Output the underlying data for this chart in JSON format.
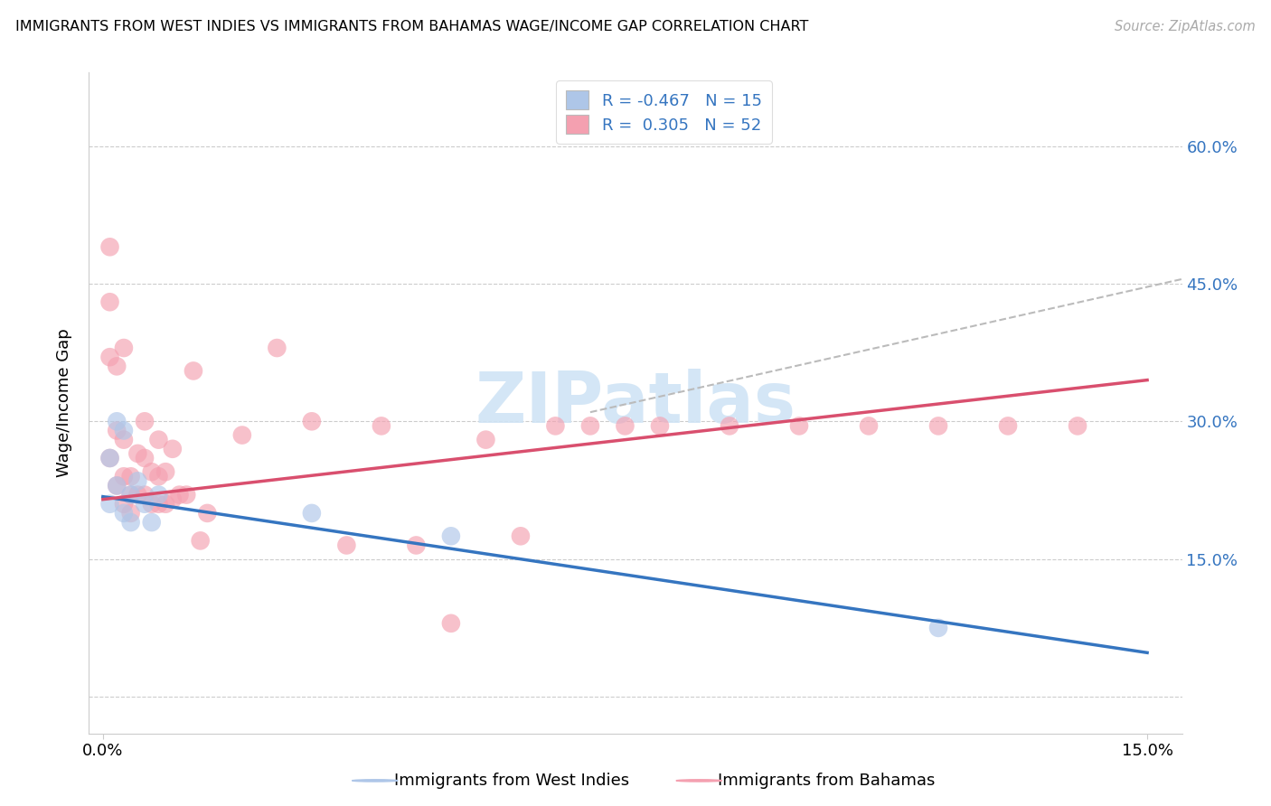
{
  "title": "IMMIGRANTS FROM WEST INDIES VS IMMIGRANTS FROM BAHAMAS WAGE/INCOME GAP CORRELATION CHART",
  "source": "Source: ZipAtlas.com",
  "ylabel": "Wage/Income Gap",
  "y_ticks": [
    0.0,
    0.15,
    0.3,
    0.45,
    0.6
  ],
  "y_tick_labels": [
    "",
    "15.0%",
    "30.0%",
    "45.0%",
    "60.0%"
  ],
  "xlim": [
    -0.002,
    0.155
  ],
  "ylim": [
    -0.04,
    0.68
  ],
  "color_west_indies": "#aec6e8",
  "color_bahamas": "#f4a0b0",
  "color_line_west_indies": "#3575c0",
  "color_line_bahamas": "#d94f6e",
  "color_axis": "#3575c0",
  "color_grid": "#cccccc",
  "color_legend_text": "#3575c0",
  "watermark": "ZIPatlas",
  "wi_line_x0": 0.0,
  "wi_line_y0": 0.218,
  "wi_line_x1": 0.15,
  "wi_line_y1": 0.048,
  "bah_line_x0": 0.0,
  "bah_line_y0": 0.215,
  "bah_line_x1": 0.15,
  "bah_line_y1": 0.345,
  "gray_line_x0": 0.07,
  "gray_line_y0": 0.31,
  "gray_line_x1": 0.155,
  "gray_line_y1": 0.455,
  "west_indies_x": [
    0.001,
    0.001,
    0.002,
    0.002,
    0.003,
    0.003,
    0.004,
    0.004,
    0.005,
    0.006,
    0.007,
    0.008,
    0.03,
    0.05,
    0.12
  ],
  "west_indies_y": [
    0.26,
    0.21,
    0.3,
    0.23,
    0.29,
    0.2,
    0.22,
    0.19,
    0.235,
    0.21,
    0.19,
    0.22,
    0.2,
    0.175,
    0.075
  ],
  "bahamas_x": [
    0.001,
    0.001,
    0.001,
    0.001,
    0.002,
    0.002,
    0.002,
    0.003,
    0.003,
    0.003,
    0.003,
    0.004,
    0.004,
    0.004,
    0.005,
    0.005,
    0.006,
    0.006,
    0.006,
    0.007,
    0.007,
    0.008,
    0.008,
    0.008,
    0.009,
    0.009,
    0.01,
    0.01,
    0.011,
    0.012,
    0.013,
    0.014,
    0.015,
    0.02,
    0.025,
    0.03,
    0.035,
    0.04,
    0.045,
    0.05,
    0.055,
    0.06,
    0.065,
    0.07,
    0.075,
    0.08,
    0.09,
    0.1,
    0.11,
    0.12,
    0.13,
    0.14
  ],
  "bahamas_y": [
    0.49,
    0.43,
    0.37,
    0.26,
    0.36,
    0.29,
    0.23,
    0.38,
    0.28,
    0.24,
    0.21,
    0.24,
    0.22,
    0.2,
    0.265,
    0.22,
    0.3,
    0.26,
    0.22,
    0.245,
    0.21,
    0.28,
    0.24,
    0.21,
    0.245,
    0.21,
    0.27,
    0.215,
    0.22,
    0.22,
    0.355,
    0.17,
    0.2,
    0.285,
    0.38,
    0.3,
    0.165,
    0.295,
    0.165,
    0.08,
    0.28,
    0.175,
    0.295,
    0.295,
    0.295,
    0.295,
    0.295,
    0.295,
    0.295,
    0.295,
    0.295,
    0.295
  ],
  "legend_label1": "R = -0.467   N = 15",
  "legend_label2": "R =  0.305   N = 52",
  "bottom_label1": "Immigrants from West Indies",
  "bottom_label2": "Immigrants from Bahamas"
}
